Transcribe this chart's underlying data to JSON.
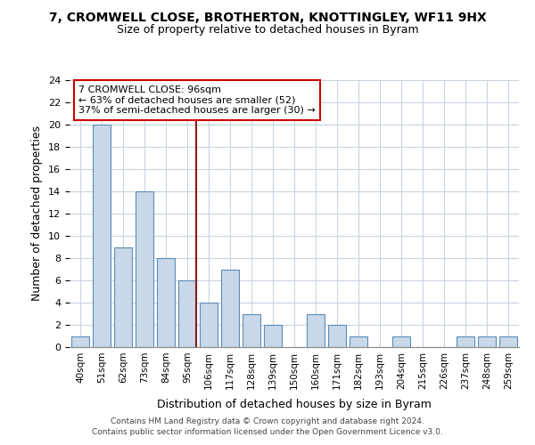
{
  "title": "7, CROMWELL CLOSE, BROTHERTON, KNOTTINGLEY, WF11 9HX",
  "subtitle": "Size of property relative to detached houses in Byram",
  "xlabel": "Distribution of detached houses by size in Byram",
  "ylabel": "Number of detached properties",
  "bin_labels": [
    "40sqm",
    "51sqm",
    "62sqm",
    "73sqm",
    "84sqm",
    "95sqm",
    "106sqm",
    "117sqm",
    "128sqm",
    "139sqm",
    "150sqm",
    "160sqm",
    "171sqm",
    "182sqm",
    "193sqm",
    "204sqm",
    "215sqm",
    "226sqm",
    "237sqm",
    "248sqm",
    "259sqm"
  ],
  "bar_heights": [
    1,
    20,
    9,
    14,
    8,
    6,
    4,
    7,
    3,
    2,
    0,
    3,
    2,
    1,
    0,
    1,
    0,
    0,
    1,
    1,
    1
  ],
  "bar_color": "#c8d8e8",
  "bar_edge_color": "#5b8db8",
  "reference_line_color": "#8b1a1a",
  "annotation_title": "7 CROMWELL CLOSE: 96sqm",
  "annotation_line1": "← 63% of detached houses are smaller (52)",
  "annotation_line2": "37% of semi-detached houses are larger (30) →",
  "annotation_box_edge": "#cc0000",
  "ylim": [
    0,
    24
  ],
  "yticks": [
    0,
    2,
    4,
    6,
    8,
    10,
    12,
    14,
    16,
    18,
    20,
    22,
    24
  ],
  "grid_color": "#c8d4e0",
  "footer_line1": "Contains HM Land Registry data © Crown copyright and database right 2024.",
  "footer_line2": "Contains public sector information licensed under the Open Government Licence v3.0."
}
